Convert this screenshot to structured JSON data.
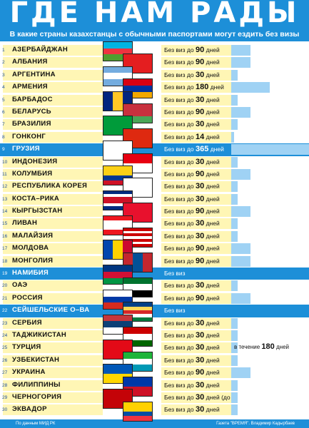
{
  "title": "ГДЕ НАМ РАДЫ",
  "subtitle": "В какие страны казахстанцы с обычными паспортами могут ездить без визы",
  "footer": {
    "left": "По данным МИД РК",
    "right": "Газета \"ВРЕМЯ\". Владимир Кадырбаев"
  },
  "bar_max_days": 365,
  "colors": {
    "accent": "#1d8fd8",
    "row_bg": "#fff6b5",
    "bar": "#9fd2f4"
  },
  "rows": [
    {
      "n": "1",
      "name": "АЗЕРБАЙДЖАН",
      "prefix": "Без виз до",
      "days": "90",
      "suffix": "дней",
      "d": 90
    },
    {
      "n": "2",
      "name": "АЛБАНИЯ",
      "prefix": "Без виз до",
      "days": "90",
      "suffix": "дней",
      "d": 90
    },
    {
      "n": "3",
      "name": "АРГЕНТИНА",
      "prefix": "Без виз до",
      "days": "30",
      "suffix": "дней",
      "d": 30
    },
    {
      "n": "4",
      "name": "АРМЕНИЯ",
      "prefix": "Без виз до",
      "days": "180",
      "suffix": "дней",
      "d": 180
    },
    {
      "n": "5",
      "name": "БАРБАДОС",
      "prefix": "Без виз до",
      "days": "30",
      "suffix": "дней",
      "d": 30
    },
    {
      "n": "6",
      "name": "БЕЛАРУСЬ",
      "prefix": "Без виз до",
      "days": "90",
      "suffix": "дней",
      "d": 90
    },
    {
      "n": "7",
      "name": "БРАЗИЛИЯ",
      "prefix": "Без виз до",
      "days": "30",
      "suffix": "дней",
      "d": 30
    },
    {
      "n": "8",
      "name": "ГОНКОНГ",
      "prefix": "Без виз до",
      "days": "14",
      "suffix": "дней",
      "d": 14
    },
    {
      "n": "9",
      "name": "ГРУЗИЯ",
      "prefix": "Без виз до",
      "days": "365",
      "suffix": "дней",
      "d": 365,
      "hl": true
    },
    {
      "n": "10",
      "name": "ИНДОНЕЗИЯ",
      "prefix": "Без виз до",
      "days": "30",
      "suffix": "дней",
      "d": 30
    },
    {
      "n": "11",
      "name": "КОЛУМБИЯ",
      "prefix": "Без виз до",
      "days": "90",
      "suffix": "дней",
      "d": 90
    },
    {
      "n": "12",
      "name": "РЕСПУБЛИКА КОРЕЯ",
      "prefix": "Без виз до",
      "days": "30",
      "suffix": "дней",
      "d": 30
    },
    {
      "n": "13",
      "name": "КОСТА–РИКА",
      "prefix": "Без виз до",
      "days": "30",
      "suffix": "дней",
      "d": 30
    },
    {
      "n": "14",
      "name": "КЫРГЫЗСТАН",
      "prefix": "Без виз до",
      "days": "90",
      "suffix": "дней",
      "d": 90
    },
    {
      "n": "15",
      "name": "ЛИВАН",
      "prefix": "Без виз до",
      "days": "30",
      "suffix": "дней",
      "d": 30
    },
    {
      "n": "16",
      "name": "МАЛАЙЗИЯ",
      "prefix": "Без виз до",
      "days": "30",
      "suffix": "дней",
      "d": 30
    },
    {
      "n": "17",
      "name": "МОЛДОВА",
      "prefix": "Без виз до",
      "days": "90",
      "suffix": "дней",
      "d": 90
    },
    {
      "n": "18",
      "name": "МОНГОЛИЯ",
      "prefix": "Без виз до",
      "days": "90",
      "suffix": "дней",
      "d": 90
    },
    {
      "n": "19",
      "name": "НАМИБИЯ",
      "prefix": "Без виз",
      "days": "",
      "suffix": "",
      "d": 0,
      "hl": true
    },
    {
      "n": "20",
      "name": "ОАЭ",
      "prefix": "Без виз до",
      "days": "30",
      "suffix": "дней",
      "d": 30
    },
    {
      "n": "21",
      "name": "РОССИЯ",
      "prefix": "Без виз до",
      "days": "90",
      "suffix": "дней",
      "d": 90
    },
    {
      "n": "22",
      "name": "СЕЙШЕЛЬСКИЕ О–ВА",
      "prefix": "Без виз",
      "days": "",
      "suffix": "",
      "d": 0,
      "hl": true
    },
    {
      "n": "23",
      "name": "СЕРБИЯ",
      "prefix": "Без виз до",
      "days": "30",
      "suffix": "дней",
      "d": 30
    },
    {
      "n": "24",
      "name": "ТАДЖИКИСТАН",
      "prefix": "Без виз до",
      "days": "30",
      "suffix": "дней",
      "d": 30
    },
    {
      "n": "25",
      "name": "ТУРЦИЯ",
      "prefix": "Без виз до",
      "days": "30",
      "suffix": "дней",
      "d": 30,
      "extra_prefix": "в течение",
      "extra_days": "180",
      "extra_suffix": "дней"
    },
    {
      "n": "26",
      "name": "УЗБЕКИСТАН",
      "prefix": "Без виз до",
      "days": "30",
      "suffix": "дней",
      "d": 30
    },
    {
      "n": "27",
      "name": "УКРАИНА",
      "prefix": "Без виз до",
      "days": "90",
      "suffix": "дней",
      "d": 90
    },
    {
      "n": "28",
      "name": "ФИЛИППИНЫ",
      "prefix": "Без виз до",
      "days": "30",
      "suffix": "дней",
      "d": 30
    },
    {
      "n": "29",
      "name": "ЧЕРНОГОРИЯ",
      "prefix": "Без виз до",
      "days": "30",
      "suffix": "дней (до 31.10.2019 г.)",
      "d": 30
    },
    {
      "n": "30",
      "name": "ЭКВАДОР",
      "prefix": "Без виз до",
      "days": "30",
      "suffix": "дней",
      "d": 30
    }
  ],
  "flags": [
    {
      "name": "azerbaijan-flag-icon",
      "bands": [
        "#00b5e2",
        "#ef3340",
        "#509e2f"
      ],
      "dir": "h"
    },
    {
      "name": "albania-flag-icon",
      "bands": [
        "#e41e20"
      ],
      "dir": "h"
    },
    {
      "name": "argentina-flag-icon",
      "bands": [
        "#74acdf",
        "#ffffff",
        "#74acdf"
      ],
      "dir": "h"
    },
    {
      "name": "armenia-flag-icon",
      "bands": [
        "#d90012",
        "#0033a0",
        "#f2a800"
      ],
      "dir": "h"
    },
    {
      "name": "barbados-flag-icon",
      "bands": [
        "#00267f",
        "#ffc726",
        "#00267f"
      ],
      "dir": "v"
    },
    {
      "name": "belarus-flag-icon",
      "bands": [
        "#c8313e",
        "#c8313e",
        "#4aa657"
      ],
      "dir": "h"
    },
    {
      "name": "brazil-flag-icon",
      "bands": [
        "#009b3a"
      ],
      "dir": "h"
    },
    {
      "name": "hongkong-flag-icon",
      "bands": [
        "#de2910"
      ],
      "dir": "h"
    },
    {
      "name": "georgia-flag-icon",
      "bands": [
        "#ffffff"
      ],
      "dir": "h"
    },
    {
      "name": "indonesia-flag-icon",
      "bands": [
        "#e70011",
        "#ffffff"
      ],
      "dir": "h"
    },
    {
      "name": "colombia-flag-icon",
      "bands": [
        "#fcd116",
        "#fcd116",
        "#003893",
        "#ce1126"
      ],
      "dir": "h"
    },
    {
      "name": "korea-flag-icon",
      "bands": [
        "#ffffff"
      ],
      "dir": "h"
    },
    {
      "name": "costarica-flag-icon",
      "bands": [
        "#002b7f",
        "#ffffff",
        "#ce1126",
        "#ce1126",
        "#ffffff",
        "#002b7f"
      ],
      "dir": "h"
    },
    {
      "name": "kyrgyzstan-flag-icon",
      "bands": [
        "#e8112d"
      ],
      "dir": "h"
    },
    {
      "name": "lebanon-flag-icon",
      "bands": [
        "#ee161f",
        "#ffffff",
        "#ffffff",
        "#ee161f"
      ],
      "dir": "h"
    },
    {
      "name": "malaysia-flag-icon",
      "bands": [
        "#cc0001",
        "#ffffff",
        "#cc0001",
        "#ffffff",
        "#cc0001",
        "#ffffff",
        "#cc0001"
      ],
      "dir": "h"
    },
    {
      "name": "moldova-flag-icon",
      "bands": [
        "#0046ae",
        "#ffd200",
        "#cc092f"
      ],
      "dir": "v"
    },
    {
      "name": "mongolia-flag-icon",
      "bands": [
        "#c4272f",
        "#015197",
        "#c4272f"
      ],
      "dir": "v"
    },
    {
      "name": "namibia-flag-icon",
      "bands": [
        "#003580",
        "#d21034",
        "#009543"
      ],
      "dir": "h"
    },
    {
      "name": "uae-flag-icon",
      "bands": [
        "#00732f",
        "#ffffff",
        "#000000"
      ],
      "dir": "h"
    },
    {
      "name": "russia-flag-icon",
      "bands": [
        "#ffffff",
        "#0039a6",
        "#d52b1e"
      ],
      "dir": "h"
    },
    {
      "name": "seychelles-flag-icon",
      "bands": [
        "#003f87",
        "#fcd856",
        "#d62828",
        "#ffffff",
        "#007a3d"
      ],
      "dir": "h"
    },
    {
      "name": "serbia-flag-icon",
      "bands": [
        "#c6363c",
        "#0c4076",
        "#ffffff"
      ],
      "dir": "h"
    },
    {
      "name": "tajikistan-flag-icon",
      "bands": [
        "#cc0000",
        "#ffffff",
        "#006600"
      ],
      "dir": "h"
    },
    {
      "name": "turkey-flag-icon",
      "bands": [
        "#e30a17"
      ],
      "dir": "h"
    },
    {
      "name": "uzbekistan-flag-icon",
      "bands": [
        "#1eb53a",
        "#ffffff",
        "#0099b5"
      ],
      "dir": "h"
    },
    {
      "name": "ukraine-flag-icon",
      "bands": [
        "#0057b7",
        "#ffd700"
      ],
      "dir": "h"
    },
    {
      "name": "philippines-flag-icon",
      "bands": [
        "#0038a8",
        "#ce1126"
      ],
      "dir": "h"
    },
    {
      "name": "montenegro-flag-icon",
      "bands": [
        "#c40308"
      ],
      "dir": "h"
    },
    {
      "name": "ecuador-flag-icon",
      "bands": [
        "#ffd100",
        "#ffd100",
        "#034ea2",
        "#ef3340"
      ],
      "dir": "h"
    }
  ]
}
